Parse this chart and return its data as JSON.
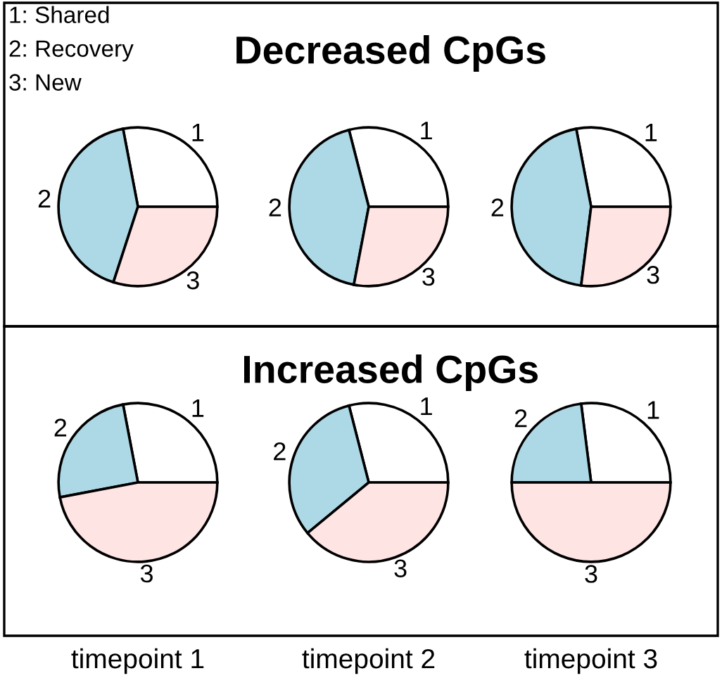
{
  "chart_data": [
    {
      "type": "pie",
      "categories": [
        "1",
        "2",
        "3"
      ],
      "values": [
        28,
        42,
        30
      ],
      "colors": [
        "#ffffff",
        "#add8e6",
        "#ffe4e4"
      ],
      "annotations": [
        "1: Shared",
        "2: Recovery",
        "3: New"
      ]
    },
    {
      "type": "pie",
      "title": "Decreased CpGs",
      "categories": [
        "1",
        "2",
        "3"
      ],
      "values": [
        29,
        43,
        28
      ],
      "colors": [
        "#ffffff",
        "#add8e6",
        "#ffe4e4"
      ]
    },
    {
      "type": "pie",
      "categories": [
        "1",
        "2",
        "3"
      ],
      "values": [
        28,
        45,
        27
      ],
      "colors": [
        "#ffffff",
        "#add8e6",
        "#ffe4e4"
      ]
    },
    {
      "type": "pie",
      "xlabel": "timepoint 1",
      "categories": [
        "1",
        "2",
        "3"
      ],
      "values": [
        28,
        25,
        47
      ],
      "colors": [
        "#ffffff",
        "#add8e6",
        "#ffe4e4"
      ]
    },
    {
      "type": "pie",
      "title": "Increased CpGs",
      "xlabel": "timepoint 2",
      "categories": [
        "1",
        "2",
        "3"
      ],
      "values": [
        29,
        32,
        39
      ],
      "colors": [
        "#ffffff",
        "#add8e6",
        "#ffe4e4"
      ]
    },
    {
      "type": "pie",
      "xlabel": "timepoint 3",
      "categories": [
        "1",
        "2",
        "3"
      ],
      "values": [
        27,
        23,
        50
      ],
      "colors": [
        "#ffffff",
        "#add8e6",
        "#ffe4e4"
      ]
    }
  ]
}
